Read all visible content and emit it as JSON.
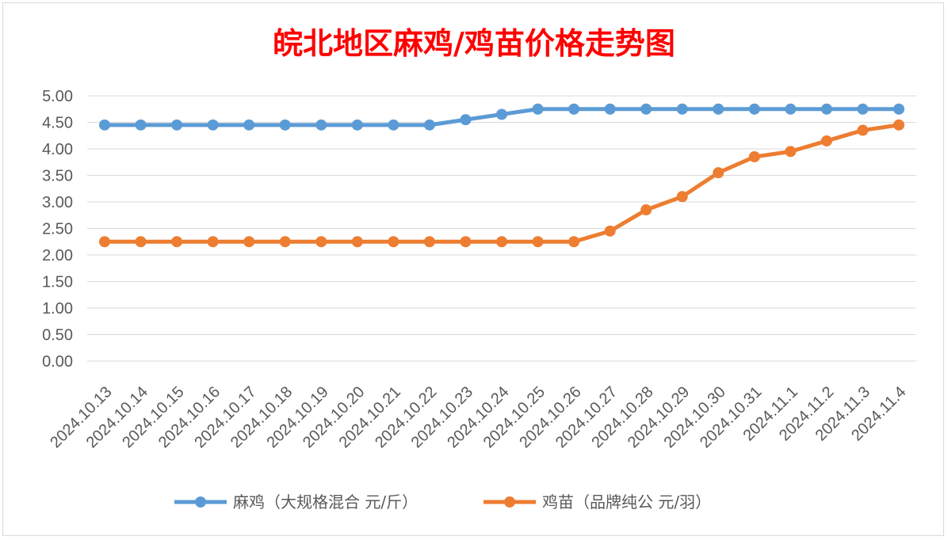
{
  "chart_data": {
    "type": "line",
    "title": "皖北地区麻鸡/鸡苗价格走势图",
    "categories": [
      "2024.10.13",
      "2024.10.14",
      "2024.10.15",
      "2024.10.16",
      "2024.10.17",
      "2024.10.18",
      "2024.10.19",
      "2024.10.20",
      "2024.10.21",
      "2024.10.22",
      "2024.10.23",
      "2024.10.24",
      "2024.10.25",
      "2024.10.26",
      "2024.10.27",
      "2024.10.28",
      "2024.10.29",
      "2024.10.30",
      "2024.10.31",
      "2024.11.1",
      "2024.11.2",
      "2024.11.3",
      "2024.11.4"
    ],
    "y_ticks": [
      "0.00",
      "0.50",
      "1.00",
      "1.50",
      "2.00",
      "2.50",
      "3.00",
      "3.50",
      "4.00",
      "4.50",
      "5.00"
    ],
    "ylim": [
      0,
      5
    ],
    "grid": true,
    "legend_position": "bottom",
    "series": [
      {
        "name": "麻鸡（大规格混合 元/斤）",
        "color": "#5b9bd5",
        "values": [
          4.45,
          4.45,
          4.45,
          4.45,
          4.45,
          4.45,
          4.45,
          4.45,
          4.45,
          4.45,
          4.55,
          4.65,
          4.75,
          4.75,
          4.75,
          4.75,
          4.75,
          4.75,
          4.75,
          4.75,
          4.75,
          4.75,
          4.75
        ]
      },
      {
        "name": "鸡苗（品牌纯公 元/羽）",
        "color": "#ed7d31",
        "values": [
          2.25,
          2.25,
          2.25,
          2.25,
          2.25,
          2.25,
          2.25,
          2.25,
          2.25,
          2.25,
          2.25,
          2.25,
          2.25,
          2.25,
          2.45,
          2.85,
          3.1,
          3.55,
          3.85,
          3.95,
          4.15,
          4.35,
          4.45
        ]
      }
    ]
  }
}
